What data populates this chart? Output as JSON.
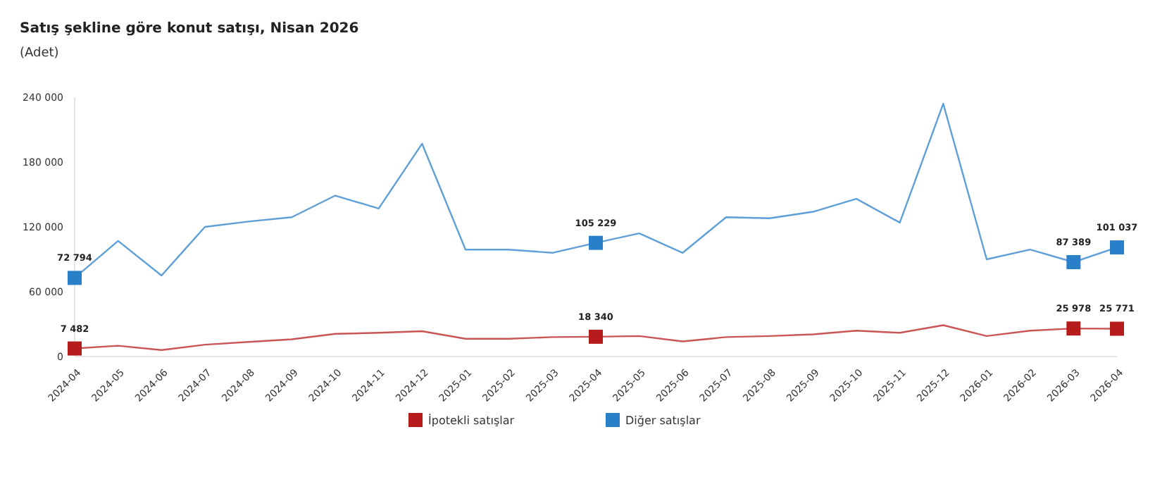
{
  "chart_data": {
    "type": "line",
    "title": "Satış şekline göre konut satışı, Nisan 2026",
    "subtitle": "(Adet)",
    "categories": [
      "2024-04",
      "2024-05",
      "2024-06",
      "2024-07",
      "2024-08",
      "2024-09",
      "2024-10",
      "2024-11",
      "2024-12",
      "2025-01",
      "2025-02",
      "2025-03",
      "2025-04",
      "2025-05",
      "2025-06",
      "2025-07",
      "2025-08",
      "2025-09",
      "2025-10",
      "2025-11",
      "2025-12",
      "2026-01",
      "2026-02",
      "2026-03",
      "2026-04"
    ],
    "series": [
      {
        "name": "İpotekli satışlar",
        "color": "#b71c1c",
        "values": [
          7482,
          10000,
          6000,
          11000,
          13500,
          16000,
          21000,
          22000,
          23500,
          16500,
          16500,
          18000,
          18340,
          19000,
          14000,
          18000,
          19000,
          20500,
          24000,
          22000,
          29000,
          19000,
          24000,
          25978,
          25771
        ],
        "value_labels": [
          "7 482",
          null,
          null,
          null,
          null,
          null,
          null,
          null,
          null,
          null,
          null,
          null,
          "18 340",
          null,
          null,
          null,
          null,
          null,
          null,
          null,
          null,
          null,
          null,
          "25 978",
          "25 771"
        ]
      },
      {
        "name": "Diğer satışlar",
        "color": "#2a7fc9",
        "values": [
          72794,
          107000,
          75000,
          120000,
          125000,
          129000,
          149000,
          137000,
          197000,
          99000,
          99000,
          96000,
          105229,
          114000,
          96000,
          129000,
          128000,
          134000,
          146000,
          124000,
          234000,
          90000,
          99000,
          87389,
          101037
        ],
        "value_labels": [
          "72 794",
          null,
          null,
          null,
          null,
          null,
          null,
          null,
          null,
          null,
          null,
          null,
          "105 229",
          null,
          null,
          null,
          null,
          null,
          null,
          null,
          null,
          null,
          null,
          "87 389",
          "101 037"
        ]
      }
    ],
    "ylim": [
      0,
      240000
    ],
    "yticks": [
      {
        "value": 0,
        "label": "0"
      },
      {
        "value": 60000,
        "label": "60 000"
      },
      {
        "value": 120000,
        "label": "120 000"
      },
      {
        "value": 180000,
        "label": "180 000"
      },
      {
        "value": 240000,
        "label": "240 000"
      }
    ],
    "grid": false,
    "legend": "bottom",
    "line_style": "solid"
  }
}
